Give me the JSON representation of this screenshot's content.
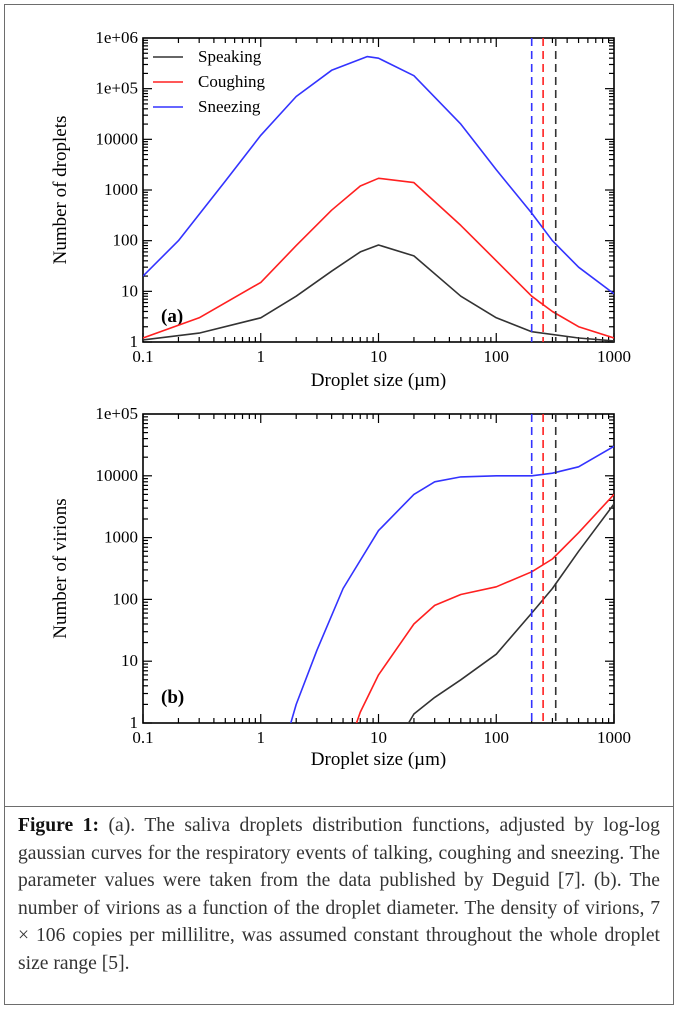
{
  "chart_data": [
    {
      "type": "line",
      "panel_label": "(a)",
      "xlabel": "Droplet size (µm)",
      "ylabel": "Number of droplets",
      "xscale": "log",
      "yscale": "log",
      "xlim": [
        0.1,
        1000
      ],
      "ylim": [
        1,
        1000000
      ],
      "xtick_labels": [
        "0.1",
        "1",
        "10",
        "100",
        "1000"
      ],
      "ytick_labels": [
        "1",
        "10",
        "100",
        "1000",
        "10000",
        "1e+05",
        "1e+06"
      ],
      "legend": {
        "placement": "top-left",
        "entries": [
          "Speaking",
          "Coughing",
          "Sneezing"
        ]
      },
      "series": [
        {
          "name": "Speaking",
          "color": "#333333",
          "x": [
            0.1,
            0.3,
            1,
            2,
            4,
            7,
            10,
            20,
            50,
            100,
            200,
            500,
            1000
          ],
          "y": [
            1.1,
            1.5,
            3,
            8,
            25,
            60,
            82,
            50,
            8,
            3,
            1.6,
            1.2,
            1.05
          ]
        },
        {
          "name": "Coughing",
          "color": "#ff2020",
          "x": [
            0.1,
            0.3,
            1,
            2,
            4,
            7,
            10,
            20,
            50,
            100,
            200,
            300,
            500,
            1000
          ],
          "y": [
            1.2,
            3,
            15,
            80,
            400,
            1200,
            1700,
            1400,
            200,
            40,
            8,
            4,
            2,
            1.2
          ]
        },
        {
          "name": "Sneezing",
          "color": "#3333ff",
          "x": [
            0.1,
            0.2,
            0.5,
            1,
            2,
            4,
            8,
            10,
            20,
            50,
            100,
            200,
            300,
            500,
            1000
          ],
          "y": [
            20,
            100,
            1500,
            12000,
            70000,
            230000,
            430000,
            400000,
            180000,
            20000,
            2500,
            350,
            100,
            30,
            9
          ]
        }
      ],
      "vertical_lines": [
        {
          "x": 200,
          "color": "#3333ff"
        },
        {
          "x": 250,
          "color": "#ff2020"
        },
        {
          "x": 320,
          "color": "#333333"
        }
      ]
    },
    {
      "type": "line",
      "panel_label": "(b)",
      "xlabel": "Droplet size (µm)",
      "ylabel": "Number of virions",
      "xscale": "log",
      "yscale": "log",
      "xlim": [
        0.1,
        1000
      ],
      "ylim": [
        1,
        100000
      ],
      "xtick_labels": [
        "0.1",
        "1",
        "10",
        "100",
        "1000"
      ],
      "ytick_labels": [
        "1",
        "10",
        "100",
        "1000",
        "10000",
        "1e+05"
      ],
      "series": [
        {
          "color": "#333333",
          "x": [
            18,
            20,
            30,
            50,
            100,
            200,
            300,
            500,
            1000
          ],
          "y": [
            1,
            1.4,
            2.6,
            5,
            13,
            60,
            150,
            600,
            3500
          ]
        },
        {
          "color": "#ff2020",
          "x": [
            6.5,
            7,
            10,
            20,
            30,
            50,
            100,
            200,
            300,
            500,
            1000
          ],
          "y": [
            1,
            1.5,
            6,
            40,
            80,
            120,
            160,
            280,
            450,
            1200,
            5000
          ]
        },
        {
          "color": "#3333ff",
          "x": [
            1.8,
            2,
            3,
            5,
            10,
            20,
            30,
            50,
            100,
            200,
            300,
            500,
            1000
          ],
          "y": [
            1,
            2,
            15,
            150,
            1300,
            5000,
            8000,
            9600,
            10000,
            10000,
            11000,
            14000,
            30000
          ]
        }
      ],
      "vertical_lines": [
        {
          "x": 200,
          "color": "#3333ff"
        },
        {
          "x": 250,
          "color": "#ff2020"
        },
        {
          "x": 320,
          "color": "#333333"
        }
      ]
    }
  ],
  "caption": {
    "label": "Figure 1:",
    "text": " (a). The saliva droplets distribution functions, adjusted by log-log gaussian curves for the respiratory events of talking, coughing and sneezing. The parameter values were taken from the data published by Deguid [7]. (b). The number of virions as a function of the droplet diameter. The density of virions, 7 × 106 copies per millilitre, was assumed constant throughout the whole droplet size range [5]."
  }
}
